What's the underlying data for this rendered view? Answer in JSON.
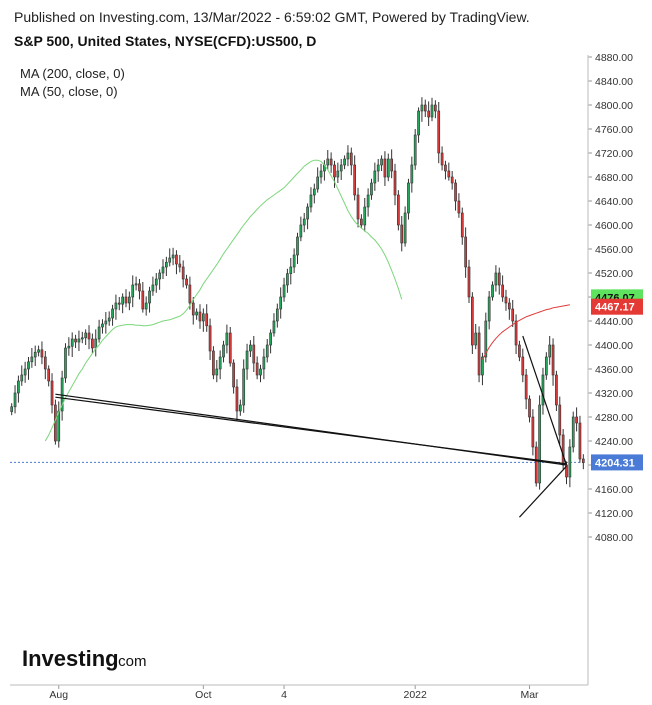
{
  "header": {
    "published": "Published on Investing.com, 13/Mar/2022 - 6:59:02 GMT, Powered by TradingView.",
    "title": "S&P 500, United States, NYSE(CFD):US500, D"
  },
  "legend": {
    "ma200": "MA (200, close, 0)",
    "ma50": "MA (50, close, 0)"
  },
  "logo": {
    "brand": "Investing",
    "suffix": ".com"
  },
  "colors": {
    "up": "#26a65b",
    "down": "#d63b3b",
    "ma50": "#7bd67b",
    "ma200": "#e03b3b",
    "trend": "#111111",
    "last": "#4a7bd6"
  },
  "chart_data": {
    "type": "candlestick",
    "title": "S&P 500, United States, NYSE(CFD):US500, D",
    "y_ticks": [
      4080,
      4120,
      4160,
      4200,
      4240,
      4280,
      4320,
      4360,
      4400,
      4440,
      4480,
      4520,
      4560,
      4600,
      4640,
      4680,
      4720,
      4760,
      4800,
      4840,
      4880
    ],
    "y_tick_labels": [
      "4080.00",
      "4120.00",
      "4160.00",
      "4200.00",
      "4240.00",
      "4280.00",
      "4320.00",
      "4360.00",
      "4400.00",
      "4440.00",
      "4480.00",
      "4520.00",
      "4560.00",
      "4600.00",
      "4640.00",
      "4680.00",
      "4720.00",
      "4760.00",
      "4800.00",
      "4840.00",
      "4880.00"
    ],
    "x_labels": [
      {
        "label": "Aug",
        "index": 14
      },
      {
        "label": "Oct",
        "index": 57
      },
      {
        "label": "4",
        "index": 81
      },
      {
        "label": "2022",
        "index": 120
      },
      {
        "label": "Mar",
        "index": 154
      }
    ],
    "closes": [
      4297,
      4320,
      4340,
      4350,
      4360,
      4372,
      4380,
      4388,
      4392,
      4380,
      4360,
      4340,
      4300,
      4240,
      4290,
      4345,
      4395,
      4398,
      4410,
      4405,
      4410,
      4412,
      4420,
      4410,
      4395,
      4410,
      4430,
      4435,
      4440,
      4445,
      4460,
      4470,
      4468,
      4480,
      4470,
      4480,
      4500,
      4502,
      4490,
      4460,
      4470,
      4490,
      4500,
      4510,
      4520,
      4530,
      4538,
      4545,
      4550,
      4535,
      4530,
      4510,
      4500,
      4470,
      4450,
      4455,
      4440,
      4452,
      4432,
      4390,
      4350,
      4360,
      4380,
      4400,
      4420,
      4370,
      4330,
      4290,
      4300,
      4360,
      4390,
      4400,
      4370,
      4350,
      4360,
      4380,
      4400,
      4420,
      4440,
      4460,
      4480,
      4500,
      4519,
      4530,
      4550,
      4580,
      4600,
      4610,
      4630,
      4650,
      4660,
      4680,
      4690,
      4700,
      4710,
      4700,
      4680,
      4690,
      4700,
      4710,
      4720,
      4700,
      4650,
      4610,
      4600,
      4630,
      4650,
      4670,
      4690,
      4700,
      4710,
      4680,
      4710,
      4690,
      4650,
      4600,
      4570,
      4620,
      4670,
      4700,
      4750,
      4790,
      4800,
      4790,
      4780,
      4800,
      4790,
      4720,
      4700,
      4690,
      4680,
      4670,
      4640,
      4620,
      4580,
      4530,
      4480,
      4400,
      4420,
      4350,
      4380,
      4440,
      4480,
      4500,
      4520,
      4500,
      4480,
      4470,
      4460,
      4440,
      4400,
      4380,
      4350,
      4310,
      4280,
      4230,
      4170,
      4300,
      4350,
      4380,
      4400,
      4350,
      4300,
      4250,
      4200,
      4180,
      4230,
      4280,
      4270,
      4210,
      4204
    ],
    "ma50_start_index": 10,
    "ma50_values": [
      4240,
      4250,
      4262,
      4275,
      4288,
      4300,
      4312,
      4322,
      4332,
      4342,
      4352,
      4360,
      4370,
      4378,
      4386,
      4394,
      4400,
      4408,
      4414,
      4420,
      4426,
      4430,
      4432,
      4433,
      4434,
      4434,
      4434,
      4433,
      4433,
      4432,
      4432,
      4433,
      4434,
      4436,
      4438,
      4440,
      4441,
      4442,
      4444,
      4446,
      4448,
      4452,
      4458,
      4466,
      4476,
      4484,
      4492,
      4502,
      4510,
      4518,
      4526,
      4534,
      4543,
      4552,
      4560,
      4568,
      4576,
      4584,
      4592,
      4600,
      4607,
      4614,
      4620,
      4626,
      4632,
      4637,
      4642,
      4646,
      4650,
      4654,
      4658,
      4662,
      4668,
      4674,
      4680,
      4686,
      4692,
      4698,
      4702,
      4706,
      4708,
      4708,
      4706,
      4700,
      4692,
      4682,
      4672,
      4660,
      4648,
      4636,
      4624,
      4614,
      4606,
      4600,
      4595,
      4590,
      4586,
      4580,
      4575,
      4568,
      4560,
      4550,
      4538,
      4524,
      4510,
      4494,
      4476
    ],
    "ma200_start_index": 140,
    "ma200_values": [
      4376,
      4386,
      4396,
      4404,
      4411,
      4417,
      4422,
      4426,
      4430,
      4434,
      4438,
      4441,
      4444,
      4447,
      4449,
      4451,
      4453,
      4455,
      4457,
      4459,
      4460,
      4462,
      4463,
      4464,
      4465,
      4466,
      4467
    ],
    "last_values": [
      {
        "label": "4476.07",
        "value": 4476.07,
        "series": "MA 50"
      },
      {
        "label": "4467.17",
        "value": 4467.17,
        "series": "MA 200"
      },
      {
        "label": "4204.31",
        "value": 4204.31,
        "series": "Close"
      }
    ],
    "trendlines": [
      {
        "from": {
          "i": 13,
          "v": 4318
        },
        "to": {
          "i": 165,
          "v": 4200
        }
      },
      {
        "from": {
          "i": 13,
          "v": 4313
        },
        "to": {
          "i": 165,
          "v": 4202
        }
      },
      {
        "from": {
          "i": 152,
          "v": 4415
        },
        "to": {
          "i": 165,
          "v": 4200
        }
      },
      {
        "from": {
          "i": 151,
          "v": 4113
        },
        "to": {
          "i": 165,
          "v": 4198
        }
      }
    ]
  }
}
